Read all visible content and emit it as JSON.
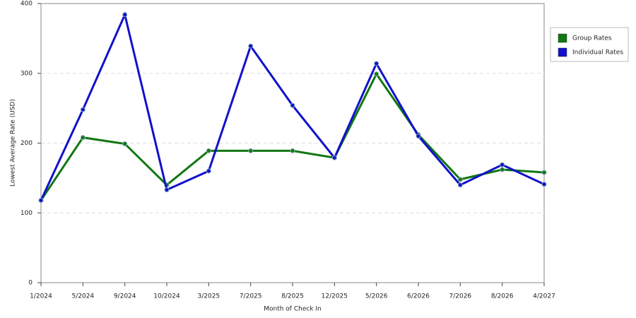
{
  "chart_data": {
    "type": "line",
    "x_label": "Month of Check In",
    "y_label": "Lowest Average Rate (USD)",
    "categories": [
      "1/2024",
      "5/2024",
      "9/2024",
      "10/2024",
      "3/2025",
      "7/2025",
      "8/2025",
      "12/2025",
      "5/2026",
      "6/2026",
      "7/2026",
      "8/2026",
      "4/2027"
    ],
    "series": [
      {
        "name": "Group Rates",
        "color": "#117711",
        "values": [
          118,
          208,
          199,
          140,
          189,
          189,
          189,
          179,
          299,
          212,
          148,
          162,
          158
        ]
      },
      {
        "name": "Individual Rates",
        "color": "#1111cc",
        "values": [
          118,
          248,
          384,
          133,
          160,
          339,
          254,
          179,
          314,
          210,
          140,
          169,
          141
        ]
      }
    ],
    "ylim": [
      0,
      400
    ],
    "yticks": [
      0,
      100,
      200,
      300,
      400
    ],
    "grid": true,
    "legend": "right"
  }
}
